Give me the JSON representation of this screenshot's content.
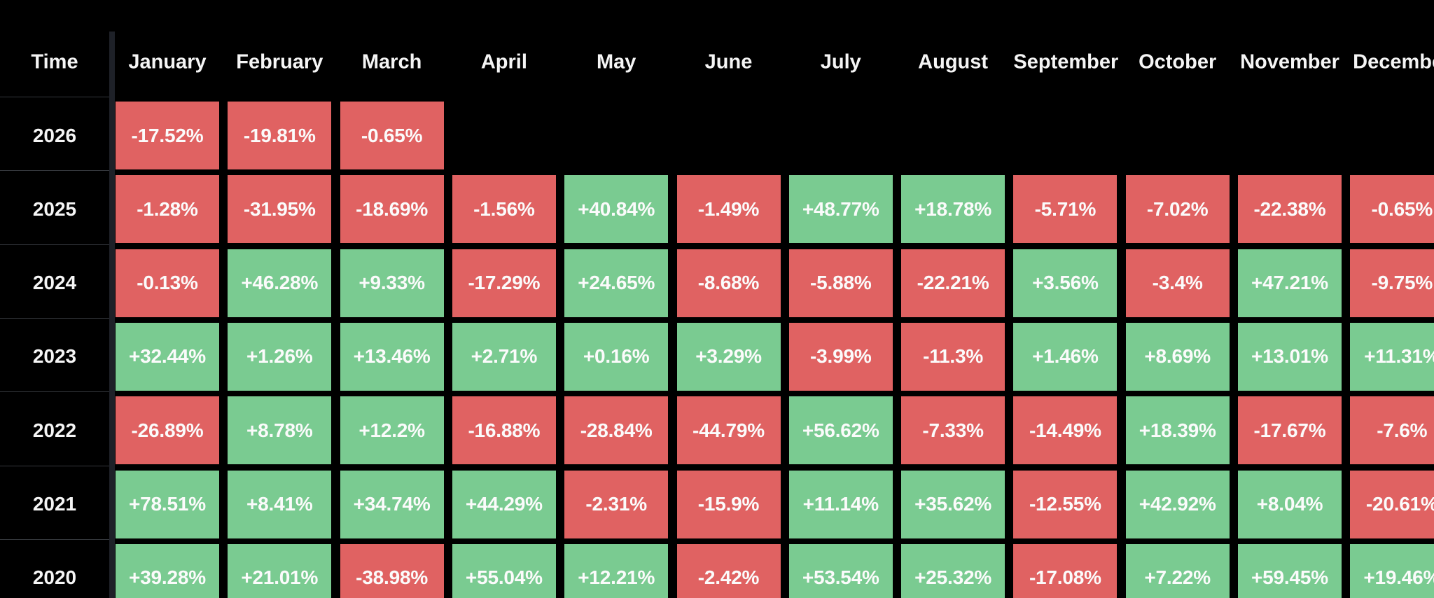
{
  "chart_data": {
    "type": "heatmap",
    "corner_label": "Time",
    "columns": [
      "January",
      "February",
      "March",
      "April",
      "May",
      "June",
      "July",
      "August",
      "September",
      "October",
      "November",
      "December"
    ],
    "rows": [
      {
        "year": "2026",
        "values": [
          "-17.52%",
          "-19.81%",
          "-0.65%",
          null,
          null,
          null,
          null,
          null,
          null,
          null,
          null,
          null
        ]
      },
      {
        "year": "2025",
        "values": [
          "-1.28%",
          "-31.95%",
          "-18.69%",
          "-1.56%",
          "+40.84%",
          "-1.49%",
          "+48.77%",
          "+18.78%",
          "-5.71%",
          "-7.02%",
          "-22.38%",
          "-0.65%"
        ]
      },
      {
        "year": "2024",
        "values": [
          "-0.13%",
          "+46.28%",
          "+9.33%",
          "-17.29%",
          "+24.65%",
          "-8.68%",
          "-5.88%",
          "-22.21%",
          "+3.56%",
          "-3.4%",
          "+47.21%",
          "-9.75%"
        ]
      },
      {
        "year": "2023",
        "values": [
          "+32.44%",
          "+1.26%",
          "+13.46%",
          "+2.71%",
          "+0.16%",
          "+3.29%",
          "-3.99%",
          "-11.3%",
          "+1.46%",
          "+8.69%",
          "+13.01%",
          "+11.31%"
        ]
      },
      {
        "year": "2022",
        "values": [
          "-26.89%",
          "+8.78%",
          "+12.2%",
          "-16.88%",
          "-28.84%",
          "-44.79%",
          "+56.62%",
          "-7.33%",
          "-14.49%",
          "+18.39%",
          "-17.67%",
          "-7.6%"
        ]
      },
      {
        "year": "2021",
        "values": [
          "+78.51%",
          "+8.41%",
          "+34.74%",
          "+44.29%",
          "-2.31%",
          "-15.9%",
          "+11.14%",
          "+35.62%",
          "-12.55%",
          "+42.92%",
          "+8.04%",
          "-20.61%"
        ]
      },
      {
        "year": "2020",
        "values": [
          "+39.28%",
          "+21.01%",
          "-38.98%",
          "+55.04%",
          "+12.21%",
          "-2.42%",
          "+53.54%",
          "+25.32%",
          "-17.08%",
          "+7.22%",
          "+59.45%",
          "+19.46%"
        ]
      }
    ],
    "legend": {
      "positive_meaning": "monthly gain",
      "negative_meaning": "monthly loss"
    },
    "colors": {
      "positive": "#7acb91",
      "negative": "#e06262",
      "background": "#000000",
      "cell_text": "#fbfbfb",
      "header_text": "#f5f5f5",
      "grid_line": "#35383d",
      "separator_band": "#1e2128"
    }
  }
}
